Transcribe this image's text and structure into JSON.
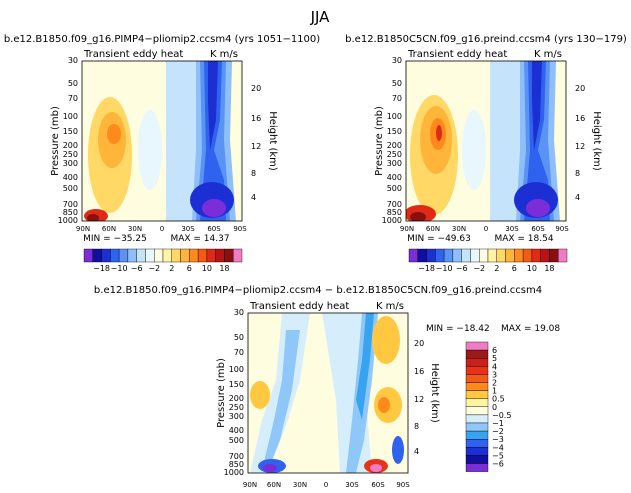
{
  "page_title": "JJA",
  "chart_data": [
    {
      "type": "heatmap",
      "title": "b.e12.B1850.f09_g16.PIMP4−pliomip2.ccsm4 (yrs 1051−1100)",
      "subtitle": "Transient eddy heat",
      "units": "K m/s",
      "ylabel": "Pressure (mb)",
      "ylabel_right": "Height (km)",
      "yticks": [
        "30",
        "50",
        "70",
        "100",
        "150",
        "200",
        "250",
        "300",
        "400",
        "500",
        "700",
        "850",
        "1000"
      ],
      "height_ticks": [
        "20",
        "16",
        "12",
        "8",
        "4"
      ],
      "xticks": [
        "90N",
        "60N",
        "30N",
        "0",
        "30S",
        "60S",
        "90S"
      ],
      "min_label": "MIN = −35.25",
      "max_label": "MAX = 14.37",
      "min": -35.25,
      "max": 14.37
    },
    {
      "type": "heatmap",
      "title": "b.e12.B1850C5CN.f09_g16.preind.ccsm4 (yrs 130−179)",
      "subtitle": "Transient eddy heat",
      "units": "K m/s",
      "ylabel": "Pressure (mb)",
      "ylabel_right": "Height (km)",
      "yticks": [
        "30",
        "50",
        "70",
        "100",
        "150",
        "200",
        "250",
        "300",
        "400",
        "500",
        "700",
        "850",
        "1000"
      ],
      "height_ticks": [
        "20",
        "16",
        "12",
        "8",
        "4"
      ],
      "xticks": [
        "90N",
        "60N",
        "30N",
        "0",
        "30S",
        "60S",
        "90S"
      ],
      "min_label": "MIN = −49.63",
      "max_label": "MAX = 18.54",
      "min": -49.63,
      "max": 18.54
    },
    {
      "type": "heatmap",
      "title": "b.e12.B1850.f09_g16.PIMP4−pliomip2.ccsm4 − b.e12.B1850C5CN.f09_g16.preind.ccsm4",
      "subtitle": "Transient eddy heat",
      "units": "K m/s",
      "ylabel": "Pressure (mb)",
      "ylabel_right": "Height (km)",
      "yticks": [
        "30",
        "50",
        "70",
        "100",
        "150",
        "200",
        "250",
        "300",
        "400",
        "500",
        "700",
        "850",
        "1000"
      ],
      "height_ticks": [
        "20",
        "16",
        "12",
        "8",
        "4"
      ],
      "xticks": [
        "90N",
        "60N",
        "30N",
        "0",
        "30S",
        "60S",
        "90S"
      ],
      "min_label": "MIN = −18.42",
      "max_label": "MAX = 19.08",
      "min": -18.42,
      "max": 19.08
    }
  ],
  "colorbar_top": {
    "labels": [
      "−18",
      "−10",
      "−6",
      "−2",
      "2",
      "6",
      "10",
      "18"
    ],
    "colors": [
      "#7b2ed8",
      "#1010a0",
      "#1c2fd2",
      "#2f62ee",
      "#5b93f5",
      "#8fbff8",
      "#c5e4fb",
      "#e8f6fd",
      "#fffde0",
      "#fff4a6",
      "#ffd866",
      "#ffb43a",
      "#ff8a1c",
      "#f35a16",
      "#e02a18",
      "#b81416",
      "#8a1010",
      "#f07cc6"
    ]
  },
  "colorbar_diff": {
    "labels": [
      "6",
      "5",
      "4",
      "3",
      "2",
      "1",
      "0.5",
      "0",
      "−0.5",
      "−1",
      "−2",
      "−3",
      "−4",
      "−5",
      "−6"
    ],
    "colors": [
      "#f07cc6",
      "#9c1a1a",
      "#c8201b",
      "#e8321a",
      "#f35a16",
      "#ff8a1c",
      "#ffc840",
      "#fff4a6",
      "#fffde0",
      "#d6eefc",
      "#8fc8f8",
      "#38a4f0",
      "#2f62ee",
      "#1c2fd2",
      "#1010a0",
      "#7b2ed8"
    ]
  }
}
